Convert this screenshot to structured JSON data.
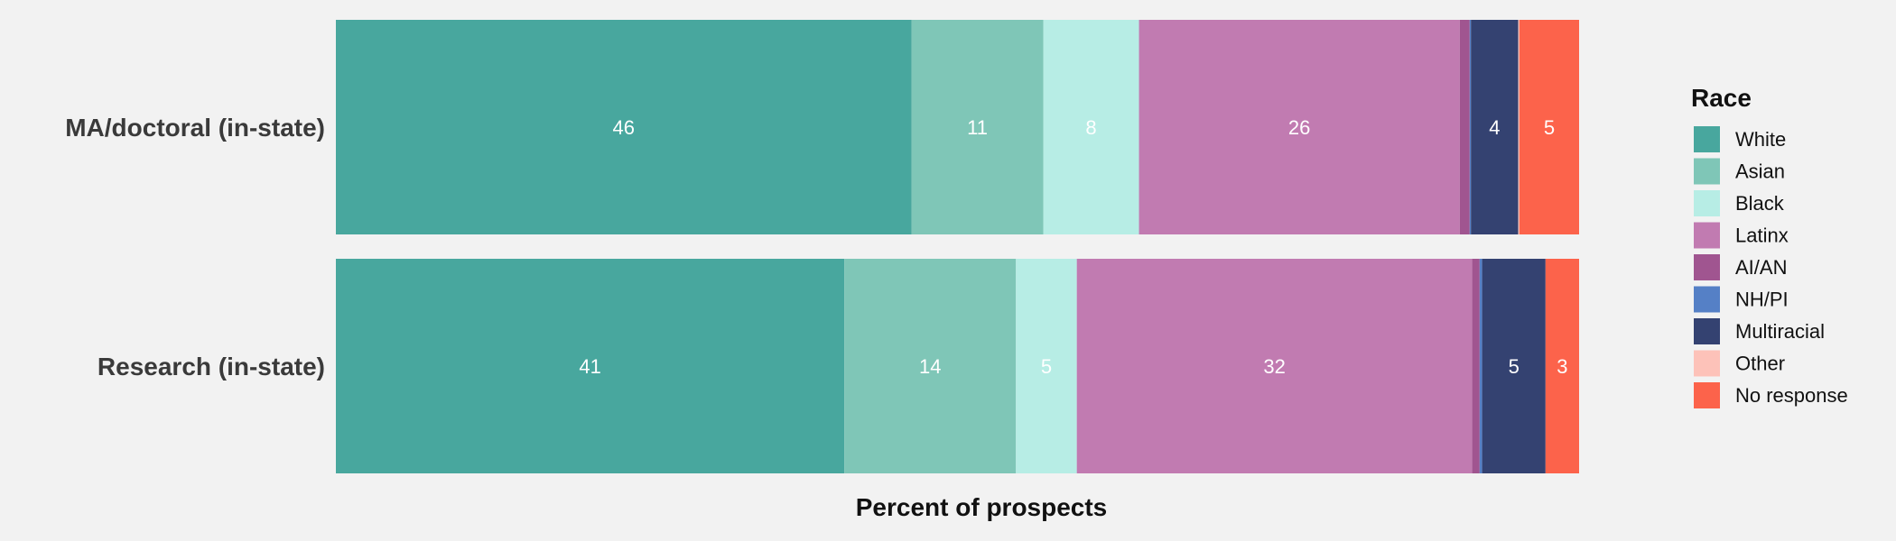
{
  "chart_data": {
    "type": "bar",
    "orientation": "horizontal",
    "stacked": true,
    "xlabel": "Percent of prospects",
    "ylabel": "",
    "xlim": [
      0,
      100
    ],
    "grid": false,
    "legend": {
      "title": "Race",
      "placement": "right"
    },
    "categories": [
      "MA/doctoral (in-state)",
      "Research (in-state)"
    ],
    "series": [
      {
        "name": "White",
        "color": "#48a79e",
        "values": [
          46.3,
          40.9
        ],
        "labels": [
          "46",
          "41"
        ]
      },
      {
        "name": "Asian",
        "color": "#7fc6b7",
        "values": [
          10.6,
          13.8
        ],
        "labels": [
          "11",
          "14"
        ]
      },
      {
        "name": "Black",
        "color": "#b7ede5",
        "values": [
          7.7,
          4.9
        ],
        "labels": [
          "8",
          "5"
        ]
      },
      {
        "name": "Latinx",
        "color": "#c17bb1",
        "values": [
          25.8,
          31.8
        ],
        "labels": [
          "26",
          "32"
        ]
      },
      {
        "name": "AI/AN",
        "color": "#a05590",
        "values": [
          0.8,
          0.6
        ],
        "labels": [
          "",
          ""
        ]
      },
      {
        "name": "NH/PI",
        "color": "#5580c6",
        "values": [
          0.1,
          0.2
        ],
        "labels": [
          "",
          ""
        ]
      },
      {
        "name": "Multiracial",
        "color": "#344271",
        "values": [
          3.8,
          5.1
        ],
        "labels": [
          "4",
          "5"
        ]
      },
      {
        "name": "Other",
        "color": "#fdc2b9",
        "values": [
          0.1,
          0.0
        ],
        "labels": [
          "",
          ""
        ]
      },
      {
        "name": "No response",
        "color": "#fc634b",
        "values": [
          4.8,
          2.7
        ],
        "labels": [
          "5",
          "3"
        ]
      }
    ]
  }
}
